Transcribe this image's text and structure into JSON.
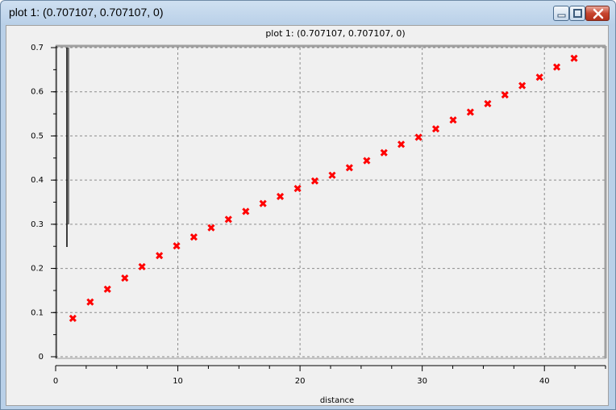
{
  "window": {
    "title": "plot 1:  (0.707107, 0.707107, 0)"
  },
  "chart_data": {
    "type": "scatter",
    "title": "plot 1:  (0.707107, 0.707107, 0)",
    "xlabel": "distance",
    "ylabel": "",
    "xlim": [
      0,
      45
    ],
    "ylim": [
      0,
      0.7
    ],
    "grid": true,
    "x_ticks": [
      0,
      10,
      20,
      30,
      40
    ],
    "y_ticks": [
      0,
      0.1,
      0.2,
      0.3,
      0.4,
      0.5,
      0.6,
      0.7
    ],
    "marker": "x",
    "marker_color": "#ff0000",
    "series": [
      {
        "x": [
          1.41,
          2.83,
          4.24,
          5.66,
          7.07,
          8.49,
          9.9,
          11.31,
          12.73,
          14.14,
          15.56,
          16.97,
          18.38,
          19.8,
          21.21,
          22.63,
          24.04,
          25.46,
          26.87,
          28.28,
          29.7,
          31.11,
          32.53,
          33.94,
          35.36,
          36.77,
          38.18,
          39.6,
          41.01,
          42.43
        ],
        "y": [
          0.087,
          0.124,
          0.153,
          0.178,
          0.204,
          0.229,
          0.251,
          0.271,
          0.292,
          0.311,
          0.329,
          0.347,
          0.363,
          0.381,
          0.398,
          0.411,
          0.428,
          0.444,
          0.462,
          0.481,
          0.497,
          0.516,
          0.536,
          0.554,
          0.573,
          0.593,
          0.614,
          0.633,
          0.656,
          0.676
        ]
      }
    ]
  }
}
